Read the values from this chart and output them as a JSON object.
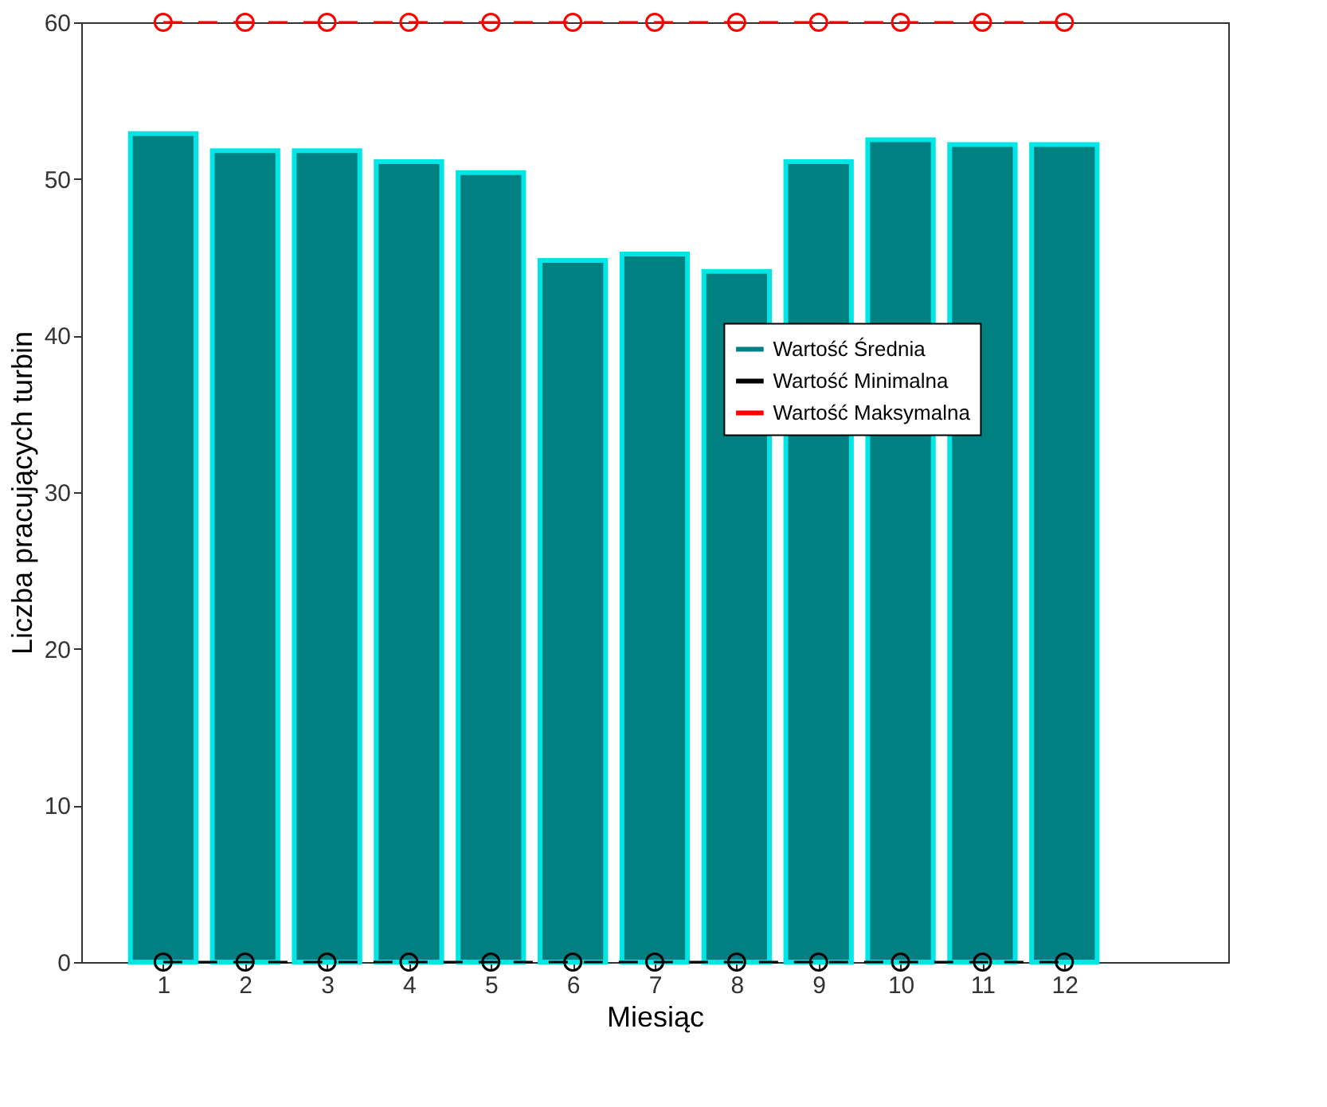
{
  "chart_data": {
    "type": "bar",
    "xlabel": "Miesiąc",
    "ylabel": "Liczba pracujących turbin",
    "x": [
      1,
      2,
      3,
      4,
      5,
      6,
      7,
      8,
      9,
      10,
      11,
      12
    ],
    "series": [
      {
        "name": "Wartość Średnia",
        "color": "#008080",
        "values": [
          52.9,
          51.8,
          51.8,
          51.1,
          50.4,
          44.8,
          45.2,
          44.1,
          51.1,
          52.5,
          52.2,
          52.2
        ]
      },
      {
        "name": "Wartość Minimalna",
        "type": "line",
        "color": "#000000",
        "line_style": "dashed",
        "marker": "circle",
        "values": [
          0,
          0,
          0,
          0,
          0,
          0,
          0,
          0,
          0,
          0,
          0,
          0
        ]
      },
      {
        "name": "Wartość Maksymalna",
        "type": "line",
        "color": "#ff0000",
        "line_style": "dashed",
        "marker": "circle",
        "values": [
          60,
          60,
          60,
          60,
          60,
          60,
          60,
          60,
          60,
          60,
          60,
          60
        ]
      }
    ],
    "xlim": [
      0,
      14
    ],
    "xticks": [
      1,
      2,
      3,
      4,
      5,
      6,
      7,
      8,
      9,
      10,
      11,
      12
    ],
    "ylim": [
      0,
      60
    ],
    "yticks": [
      0,
      10,
      20,
      30,
      40,
      50,
      60
    ],
    "grid": false,
    "legend": "right"
  }
}
